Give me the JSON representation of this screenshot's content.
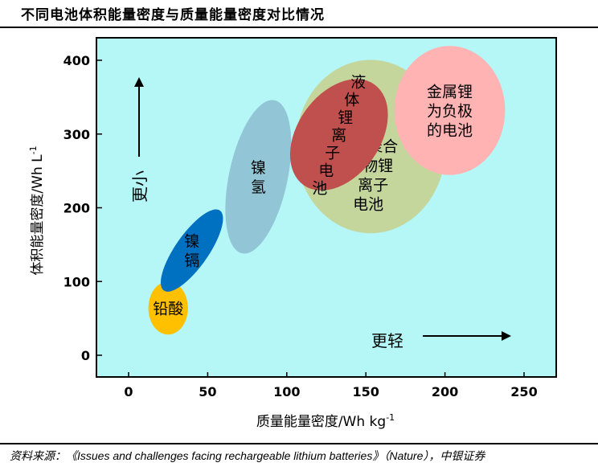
{
  "title": "不同电池体积能量密度与质量能量密度对比情况",
  "source": "资料来源：《Issues and challenges facing rechargeable lithium batteries》（Nature），中银证券",
  "chart_data": {
    "type": "scatter",
    "xlabel": "质量能量密度/Wh kg",
    "xlabel_sup": "-1",
    "ylabel": "体积能量密度/Wh L",
    "ylabel_sup": "-1",
    "xlim": [
      -20,
      270
    ],
    "ylim": [
      -30,
      430
    ],
    "xticks": [
      "0",
      "50",
      "100",
      "150",
      "200",
      "250"
    ],
    "xtick_values": [
      0,
      50,
      100,
      150,
      200,
      250
    ],
    "yticks": [
      "0",
      "100",
      "200",
      "300",
      "400"
    ],
    "ytick_values": [
      0,
      100,
      200,
      300,
      400
    ],
    "background": "#b5f6f6",
    "grid": false,
    "regions": [
      {
        "name": "铅酸",
        "lines": [
          "铅酸"
        ],
        "cx": 25,
        "cy": 64,
        "wx": [
          13,
          38
        ],
        "wy": [
          28,
          100
        ],
        "color": "#ffc000"
      },
      {
        "name": "镍镉",
        "lines": [
          "镍",
          "镉"
        ],
        "cx": 40,
        "cy": 142,
        "wx": [
          30,
          52
        ],
        "wy": [
          70,
          205
        ],
        "color": "#0070c0"
      },
      {
        "name": "镍氢",
        "lines": [
          "镍",
          "氢"
        ],
        "cx": 82,
        "cy": 242,
        "wx": [
          63,
          102
        ],
        "wy": [
          55,
          305
        ],
        "color": "#92c6d6"
      },
      {
        "name": "聚合物锂离子电池",
        "lines": [
          "聚合",
          "物锂",
          "离子",
          "电池"
        ],
        "cx": 153,
        "cy": 283,
        "wx": [
          105,
          200
        ],
        "wy": [
          160,
          395
        ],
        "color": "#c4d69c"
      },
      {
        "name": "液体锂离子电池",
        "lines": [
          "液",
          "体",
          "锂",
          "离",
          "子",
          "电",
          "池"
        ],
        "cx": 133,
        "cy": 299,
        "wx": [
          105,
          160
        ],
        "wy": [
          205,
          375
        ],
        "color": "#c0504d"
      },
      {
        "name": "金属锂为负极的电池",
        "lines": [
          "金属锂",
          "为负极",
          "的电池"
        ],
        "cx": 203,
        "cy": 332,
        "wx": [
          168,
          238
        ],
        "wy": [
          245,
          420
        ],
        "color": "#ffb3b3"
      }
    ],
    "annotations": [
      {
        "text": "更小",
        "direction": "up"
      },
      {
        "text": "更轻",
        "direction": "right"
      }
    ]
  }
}
